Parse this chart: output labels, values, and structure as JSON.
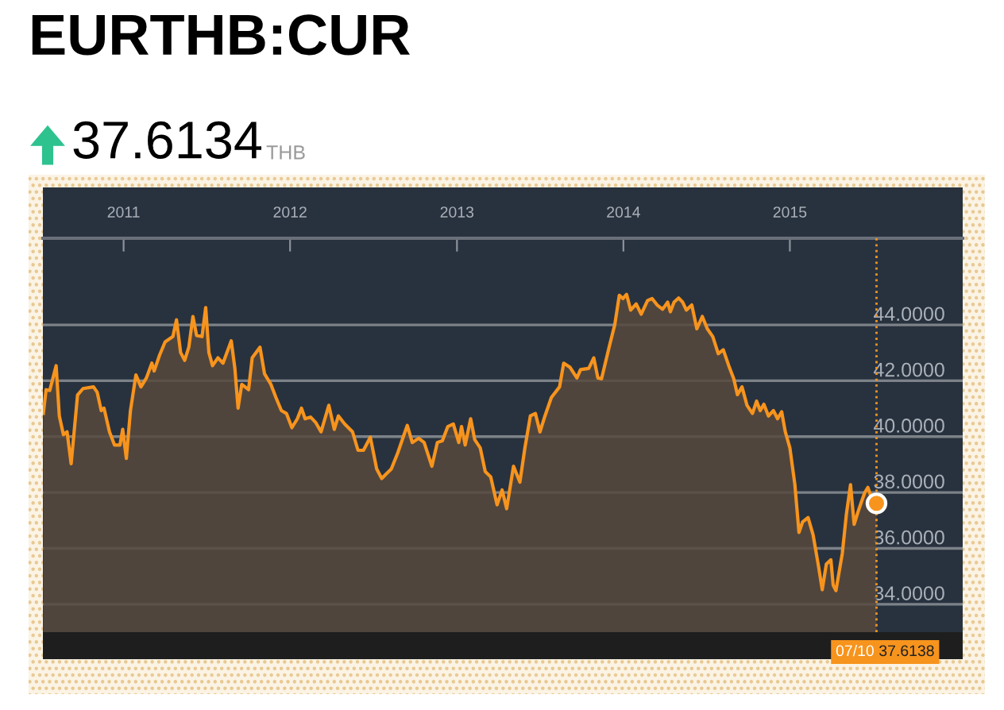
{
  "chart_data": {
    "type": "area",
    "title": "EURTHB:CUR",
    "subtitle": "37.6134",
    "annotations": [
      "THB",
      "37.6138"
    ],
    "xlim": [
      "2010-07-08",
      "2016-01-15"
    ],
    "ylim": [
      33,
      47.1
    ],
    "xticks": [
      {
        "value": "2011-01-01",
        "label": "2011"
      },
      {
        "value": "2012-01-01",
        "label": "2012"
      },
      {
        "value": "2013-01-01",
        "label": "2013"
      },
      {
        "value": "2014-01-01",
        "label": "2014"
      },
      {
        "value": "2015-01-01",
        "label": "2015"
      }
    ],
    "yticks": [
      {
        "value": 34,
        "label": "34.0000"
      },
      {
        "value": 36,
        "label": "36.0000"
      },
      {
        "value": 38,
        "label": "38.0000"
      },
      {
        "value": 40,
        "label": "40.0000"
      },
      {
        "value": 42,
        "label": "42.0000"
      },
      {
        "value": 44,
        "label": "44.0000"
      }
    ],
    "grid": "y",
    "ref_lines": [
      {
        "axis": "x",
        "value": "2015-07-10",
        "label": "07/10",
        "color": "#f7941d",
        "line_style": "dotted"
      }
    ],
    "series": [
      {
        "color": "#f7941d",
        "x": [
          "2010-07-09",
          "2010-07-15",
          "2010-07-23",
          "2010-08-06",
          "2010-08-13",
          "2010-08-22",
          "2010-08-30",
          "2010-09-08",
          "2010-09-22",
          "2010-10-04",
          "2010-10-27",
          "2010-11-04",
          "2010-11-13",
          "2010-11-19",
          "2010-12-01",
          "2010-12-12",
          "2010-12-24",
          "2010-12-30",
          "2011-01-07",
          "2011-01-16",
          "2011-01-28",
          "2011-02-08",
          "2011-02-20",
          "2011-03-04",
          "2011-03-09",
          "2011-03-21",
          "2011-04-02",
          "2011-04-19",
          "2011-04-27",
          "2011-05-06",
          "2011-05-15",
          "2011-05-24",
          "2011-06-02",
          "2011-06-10",
          "2011-06-22",
          "2011-06-30",
          "2011-07-07",
          "2011-07-15",
          "2011-07-27",
          "2011-08-07",
          "2011-08-25",
          "2011-09-02",
          "2011-09-09",
          "2011-09-17",
          "2011-10-02",
          "2011-10-10",
          "2011-10-27",
          "2011-11-06",
          "2011-11-20",
          "2011-12-01",
          "2011-12-13",
          "2011-12-24",
          "2012-01-05",
          "2012-01-17",
          "2012-01-26",
          "2012-02-03",
          "2012-02-15",
          "2012-02-26",
          "2012-03-09",
          "2012-03-26",
          "2012-04-07",
          "2012-04-16",
          "2012-04-30",
          "2012-05-17",
          "2012-05-29",
          "2012-06-10",
          "2012-06-25",
          "2012-07-09",
          "2012-07-20",
          "2012-07-29",
          "2012-08-10",
          "2012-08-24",
          "2012-09-05",
          "2012-09-14",
          "2012-09-25",
          "2012-10-09",
          "2012-10-21",
          "2012-11-07",
          "2012-11-19",
          "2012-11-30",
          "2012-12-12",
          "2012-12-24",
          "2013-01-05",
          "2013-01-11",
          "2013-01-19",
          "2013-01-31",
          "2013-02-09",
          "2013-02-21",
          "2013-03-04",
          "2013-03-16",
          "2013-03-30",
          "2013-04-10",
          "2013-04-20",
          "2013-05-05",
          "2013-05-19",
          "2013-05-30",
          "2013-06-11",
          "2013-06-22",
          "2013-07-02",
          "2013-07-13",
          "2013-07-27",
          "2013-08-14",
          "2013-08-23",
          "2013-09-06",
          "2013-09-21",
          "2013-09-29",
          "2013-10-17",
          "2013-10-28",
          "2013-11-06",
          "2013-11-14",
          "2013-12-02",
          "2013-12-13",
          "2013-12-23",
          "2013-12-31",
          "2014-01-08",
          "2014-01-17",
          "2014-01-29",
          "2014-02-09",
          "2014-02-23",
          "2014-03-05",
          "2014-03-16",
          "2014-03-28",
          "2014-04-08",
          "2014-04-14",
          "2014-04-22",
          "2014-05-02",
          "2014-05-11",
          "2014-05-19",
          "2014-05-31",
          "2014-06-11",
          "2014-06-23",
          "2014-07-04",
          "2014-07-16",
          "2014-07-28",
          "2014-08-08",
          "2014-08-20",
          "2014-08-31",
          "2014-09-08",
          "2014-09-18",
          "2014-09-29",
          "2014-10-11",
          "2014-10-20",
          "2014-10-28",
          "2014-11-05",
          "2014-11-15",
          "2014-11-26",
          "2014-12-05",
          "2014-12-14",
          "2014-12-22",
          "2015-01-01",
          "2015-01-12",
          "2015-01-21",
          "2015-01-29",
          "2015-02-10",
          "2015-02-21",
          "2015-03-05",
          "2015-03-13",
          "2015-03-22",
          "2015-04-01",
          "2015-04-06",
          "2015-04-12",
          "2015-04-20",
          "2015-04-26",
          "2015-05-05",
          "2015-05-14",
          "2015-05-22",
          "2015-05-31",
          "2015-06-06",
          "2015-06-14",
          "2015-06-21",
          "2015-06-29",
          "2015-07-10"
        ],
        "values": [
          40.83,
          41.68,
          41.65,
          42.54,
          40.74,
          40.07,
          40.17,
          39.03,
          41.49,
          41.72,
          41.78,
          41.59,
          40.93,
          41.02,
          40.17,
          39.7,
          39.7,
          40.26,
          39.22,
          40.93,
          42.21,
          41.78,
          42.1,
          42.63,
          42.35,
          42.92,
          43.39,
          43.58,
          44.18,
          43.01,
          42.73,
          43.2,
          44.3,
          43.62,
          43.58,
          44.62,
          43.01,
          42.54,
          42.82,
          42.63,
          43.43,
          42.44,
          41.02,
          41.87,
          41.68,
          42.82,
          43.2,
          42.25,
          41.87,
          41.4,
          40.93,
          40.83,
          40.32,
          40.64,
          41.02,
          40.64,
          40.7,
          40.51,
          40.17,
          41.12,
          40.26,
          40.74,
          40.45,
          40.17,
          39.51,
          39.51,
          39.98,
          38.84,
          38.5,
          38.65,
          38.84,
          39.41,
          39.98,
          40.4,
          39.79,
          39.94,
          39.79,
          38.94,
          39.79,
          39.85,
          40.36,
          40.45,
          39.79,
          40.36,
          39.7,
          40.64,
          39.89,
          39.6,
          38.75,
          38.56,
          37.56,
          38.09,
          37.42,
          38.94,
          38.37,
          39.6,
          40.74,
          40.83,
          40.17,
          40.74,
          41.4,
          41.78,
          42.63,
          42.48,
          42.1,
          42.4,
          42.44,
          42.82,
          42.1,
          42.07,
          43.29,
          44.0,
          45.06,
          44.94,
          45.09,
          44.53,
          44.75,
          44.38,
          44.87,
          44.94,
          44.71,
          44.56,
          44.81,
          44.47,
          44.81,
          44.96,
          44.81,
          44.53,
          44.71,
          43.86,
          44.3,
          43.86,
          43.58,
          42.97,
          43.11,
          42.54,
          42.07,
          41.5,
          41.78,
          41.12,
          40.83,
          41.27,
          40.93,
          41.16,
          40.74,
          40.93,
          40.64,
          40.89,
          40.17,
          39.6,
          38.28,
          36.57,
          36.95,
          37.1,
          36.48,
          35.34,
          34.52,
          35.44,
          35.59,
          34.68,
          34.49,
          35.25,
          35.82,
          37.23,
          38.28,
          36.86,
          37.33,
          37.62,
          37.99,
          38.18,
          37.8,
          37.61
        ]
      },
      {
        "type": "scatter",
        "color": "#f7941d",
        "marker": "circle",
        "x": [
          "2015-07-10"
        ],
        "values": [
          37.61
        ]
      }
    ]
  }
}
